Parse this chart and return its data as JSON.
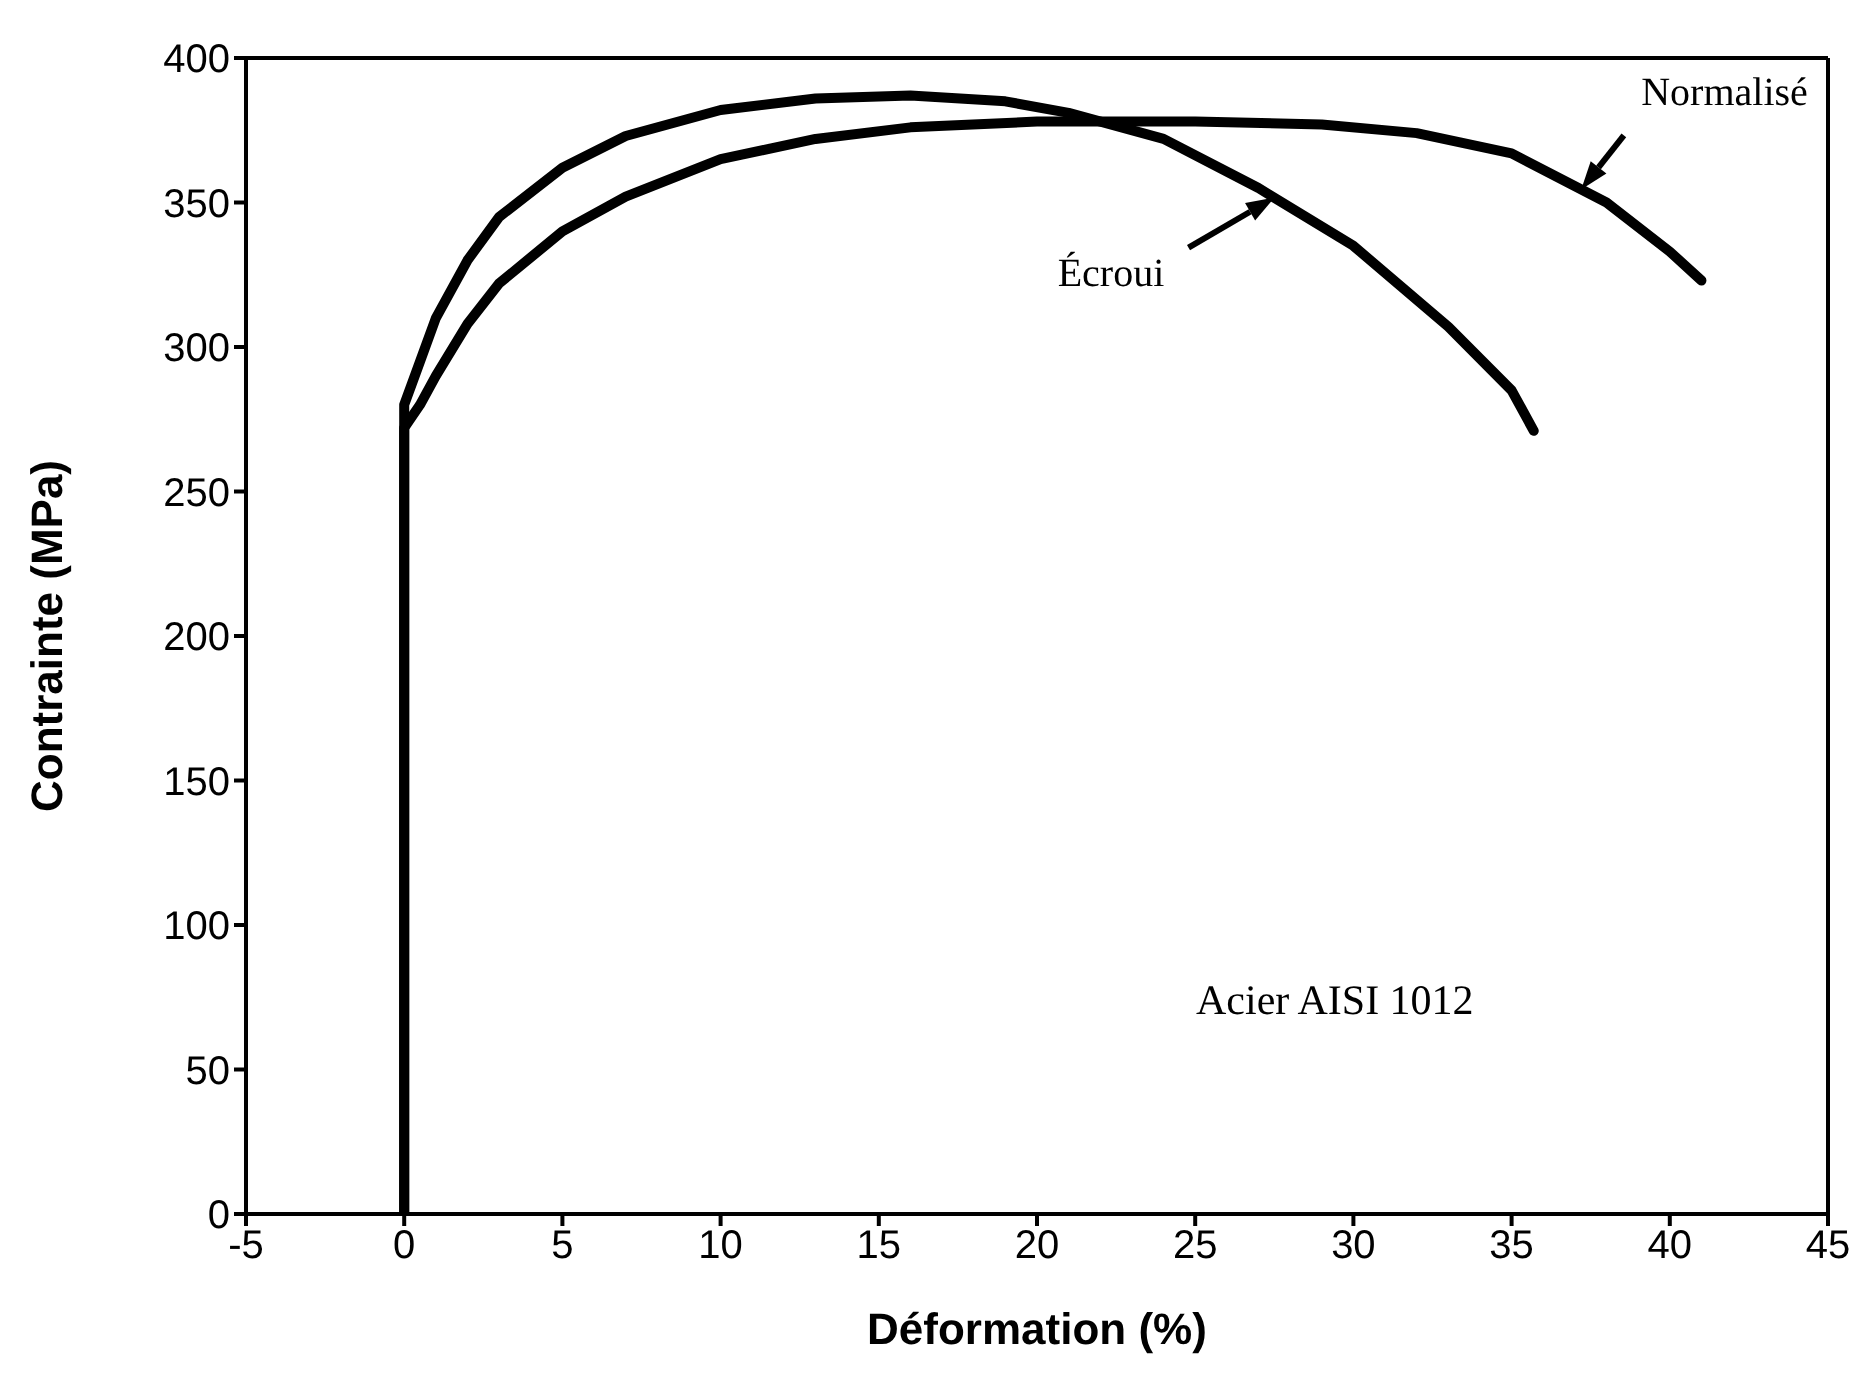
{
  "chart_data": {
    "type": "line",
    "xlabel": "Déformation (%)",
    "ylabel": "Contrainte (MPa)",
    "xlim": [
      -5,
      45
    ],
    "xticks": [
      -5,
      0,
      5,
      10,
      15,
      20,
      25,
      30,
      35,
      40,
      45
    ],
    "ylim": [
      0,
      400
    ],
    "yticks": [
      0,
      50,
      100,
      150,
      200,
      250,
      300,
      350,
      400
    ],
    "marker": "none",
    "line_style": "solid",
    "series": [
      {
        "name": "Écroui",
        "color": "#000000",
        "x": [
          0,
          0,
          0.5,
          1,
          2,
          3,
          5,
          7,
          10,
          13,
          16,
          19,
          21,
          24,
          27,
          30,
          33,
          35,
          35.7
        ],
        "values": [
          0,
          280,
          295,
          310,
          330,
          345,
          362,
          373,
          382,
          386,
          387,
          385,
          381,
          372,
          355,
          335,
          307,
          285,
          271
        ]
      },
      {
        "name": "Normalisé",
        "color": "#000000",
        "x": [
          0,
          0,
          0.5,
          1,
          2,
          3,
          5,
          7,
          10,
          13,
          16,
          20,
          25,
          29,
          32,
          35,
          38,
          40,
          41
        ],
        "values": [
          0,
          272,
          280,
          290,
          308,
          322,
          340,
          352,
          365,
          372,
          376,
          378,
          378,
          377,
          374,
          367,
          350,
          333,
          323
        ]
      }
    ],
    "annotations": [
      "Acier AISI 1012"
    ]
  }
}
